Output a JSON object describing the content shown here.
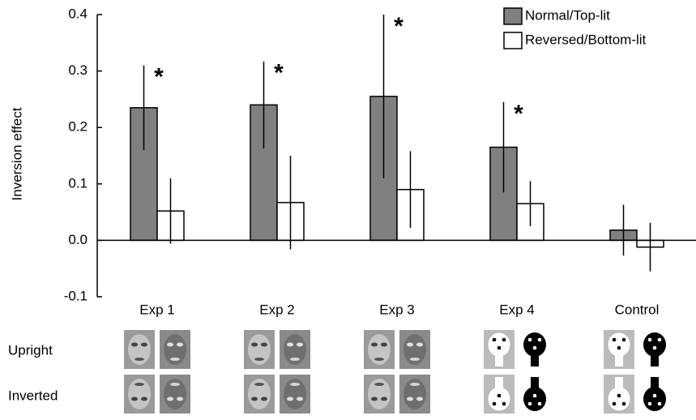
{
  "chart_data": {
    "type": "bar",
    "y_label": "Inversion effect",
    "categories": [
      "Exp 1",
      "Exp 2",
      "Exp 3",
      "Exp 4",
      "Control"
    ],
    "series": [
      {
        "name": "Normal/Top-lit",
        "color": "#808080",
        "values": [
          0.235,
          0.24,
          0.255,
          0.165,
          0.018
        ],
        "errors": [
          0.075,
          0.077,
          0.145,
          0.08,
          0.045
        ]
      },
      {
        "name": "Reversed/Bottom-lit",
        "color": "#ffffff",
        "values": [
          0.052,
          0.067,
          0.09,
          0.065,
          -0.012
        ],
        "errors": [
          0.058,
          0.083,
          0.068,
          0.04,
          0.043
        ]
      }
    ],
    "significance": [
      "*",
      "*",
      "*",
      "*",
      null
    ],
    "row_labels": [
      "Upright",
      "Inverted"
    ],
    "ylim": [
      -0.1,
      0.4
    ],
    "yticks": [
      -0.1,
      {
        "value": 0,
        "label": "0.0"
      },
      0.1,
      0.2,
      0.3,
      0.4
    ],
    "legend": "top-right"
  }
}
